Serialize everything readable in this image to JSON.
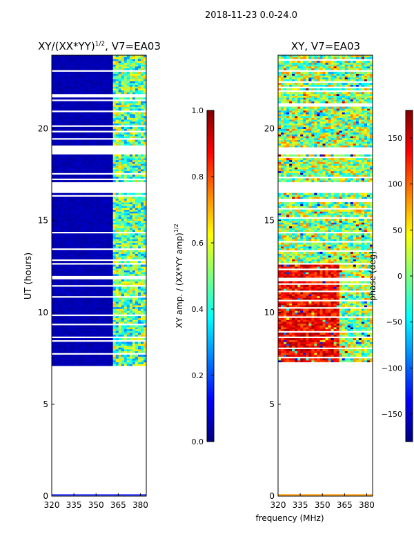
{
  "suptitle": "2018-11-23 0.0-24.0",
  "colors": {
    "background_low": "#00008f",
    "jet_stops": [
      "#00007f",
      "#0000ff",
      "#007fff",
      "#00ffff",
      "#7fff7f",
      "#ffff00",
      "#ff7f00",
      "#ff0000",
      "#7f0000"
    ]
  },
  "chart_data": [
    {
      "type": "heatmap",
      "title_main": "XY/(XX*YY)",
      "title_power": "1/2",
      "title_suffix": ", V7=EA03",
      "xlabel": "",
      "ylabel": "UT (hours)",
      "xlim": [
        320,
        384
      ],
      "ylim": [
        0,
        24
      ],
      "xticks": [
        320,
        335,
        350,
        365,
        380
      ],
      "yticks": [
        0,
        5,
        10,
        15,
        20
      ],
      "colorbar": {
        "label_main": "XY amp. / (XX*YY amp)",
        "label_power": "1/2",
        "range": [
          0.0,
          1.0
        ],
        "ticks": [
          "0.0",
          "0.2",
          "0.4",
          "0.6",
          "0.8",
          "1.0"
        ],
        "tick_values": [
          0.0,
          0.2,
          0.4,
          0.6,
          0.8,
          1.0
        ]
      }
    },
    {
      "type": "heatmap",
      "title_main": "XY, V7=EA03",
      "xlabel": "frequency (MHz)",
      "ylabel": "",
      "xlim": [
        320,
        384
      ],
      "ylim": [
        0,
        24
      ],
      "xticks": [
        320,
        335,
        350,
        365,
        380
      ],
      "yticks": [
        0,
        5,
        10,
        15,
        20
      ],
      "colorbar": {
        "label_main": "phase (deg)",
        "range": [
          -180,
          180
        ],
        "ticks": [
          "−150",
          "−100",
          "−50",
          "0",
          "50",
          "100",
          "150"
        ],
        "tick_values": [
          -150,
          -100,
          -50,
          0,
          50,
          100,
          150
        ]
      }
    }
  ]
}
